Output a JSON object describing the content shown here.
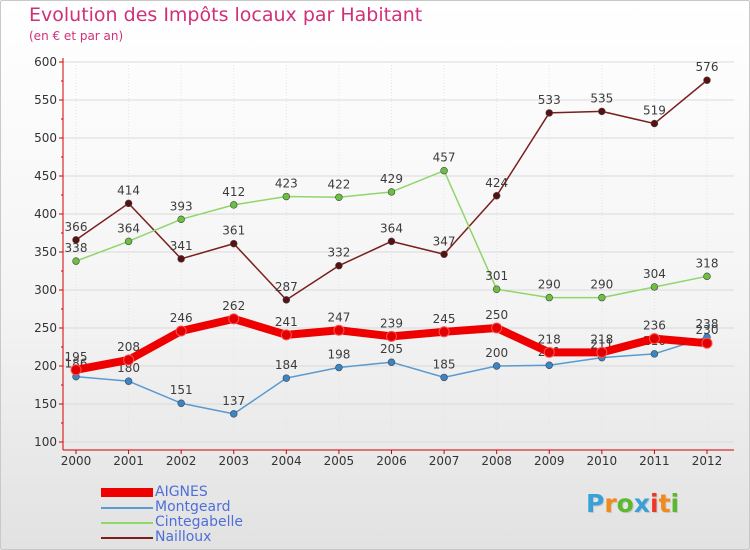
{
  "title": "Evolution des Impôts locaux par Habitant",
  "subtitle": "(en € et par an)",
  "logo": {
    "text": "Proxiti",
    "letter_colors": [
      "#3aa0d8",
      "#f08a1c",
      "#5cb82e",
      "#3aa0d8",
      "#e83a2a",
      "#f08a1c",
      "#5cb82e"
    ]
  },
  "colors": {
    "axis": "#d00000",
    "grid": "#dadada",
    "label": "#333333",
    "legend_text": "#4f6fd8"
  },
  "chart_data": {
    "type": "line",
    "title": "Evolution des Impôts locaux par Habitant",
    "subtitle": "(en € et par an)",
    "xlabel": "",
    "ylabel": "",
    "ylim": [
      100,
      600
    ],
    "yticks": [
      100,
      150,
      200,
      250,
      300,
      350,
      400,
      450,
      500,
      550,
      600
    ],
    "categories": [
      "2000",
      "2001",
      "2002",
      "2003",
      "2004",
      "2005",
      "2006",
      "2007",
      "2008",
      "2009",
      "2010",
      "2011",
      "2012"
    ],
    "grid": "horizontal",
    "legend_position": "bottom-left",
    "series": [
      {
        "name": "Nailloux",
        "color": "#7a1e1e",
        "marker_color": "#5a1010",
        "values": [
          366,
          414,
          341,
          361,
          287,
          332,
          364,
          347,
          424,
          533,
          535,
          519,
          576
        ]
      },
      {
        "name": "Cintegabelle",
        "color": "#8fd66b",
        "marker_color": "#6cc040",
        "values": [
          338,
          364,
          393,
          412,
          423,
          422,
          429,
          457,
          301,
          290,
          290,
          304,
          318
        ]
      },
      {
        "name": "Montgeard",
        "color": "#5a9ad0",
        "marker_color": "#3a84c8",
        "values": [
          186,
          180,
          151,
          137,
          184,
          198,
          205,
          185,
          200,
          201,
          211,
          216,
          238
        ]
      },
      {
        "name": "AIGNES",
        "color": "#ee0000",
        "marker_color": "#e00000",
        "values": [
          195,
          208,
          246,
          262,
          241,
          247,
          239,
          245,
          250,
          218,
          218,
          236,
          230
        ]
      }
    ],
    "legend_order": [
      "AIGNES",
      "Montgeard",
      "Cintegabelle",
      "Nailloux"
    ]
  }
}
